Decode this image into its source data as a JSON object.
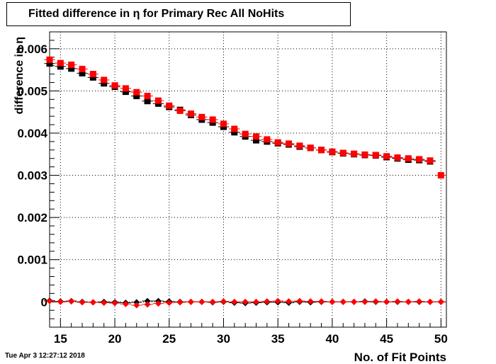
{
  "title": "Fitted difference in  η for Primary Rec All NoHits",
  "footer": {
    "timestamp": "Tue Apr  3 12:27:12 2018"
  },
  "chart_data": {
    "type": "scatter",
    "xlabel": "No. of Fit Points",
    "ylabel": "difference in η",
    "xlim": [
      14,
      50.5
    ],
    "ylim": [
      -0.0006,
      0.0064
    ],
    "grid": true,
    "x_ticks": [
      15,
      20,
      25,
      30,
      35,
      40,
      45,
      50
    ],
    "x_tick_labels": [
      "15",
      "20",
      "25",
      "30",
      "35",
      "40",
      "45",
      "50"
    ],
    "y_ticks": [
      0,
      0.001,
      0.002,
      0.003,
      0.004,
      0.005,
      0.006
    ],
    "y_tick_labels": [
      "0",
      "0.001",
      "0.002",
      "0.003",
      "0.004",
      "0.005",
      "0.006"
    ],
    "colors": {
      "black": "#000000",
      "red": "#ff0000"
    },
    "series": [
      {
        "color": "black",
        "marker": "square",
        "x": [
          14,
          15,
          16,
          17,
          18,
          19,
          20,
          21,
          22,
          23,
          24,
          25,
          26,
          27,
          28,
          29,
          30,
          31,
          32,
          33,
          34,
          35,
          36,
          37,
          38,
          39,
          40,
          41,
          42,
          43,
          44,
          45,
          46,
          47,
          48,
          49
        ],
        "y": [
          0.00565,
          0.00558,
          0.00553,
          0.00542,
          0.00532,
          0.00518,
          0.0051,
          0.00498,
          0.00488,
          0.00476,
          0.0047,
          0.00462,
          0.00455,
          0.00443,
          0.00432,
          0.00425,
          0.00415,
          0.00402,
          0.00392,
          0.00383,
          0.0038,
          0.00376,
          0.00373,
          0.00368,
          0.00365,
          0.0036,
          0.00355,
          0.00352,
          0.0035,
          0.00348,
          0.00347,
          0.00343,
          0.0034,
          0.00337,
          0.00336,
          0.00333
        ]
      },
      {
        "color": "red",
        "marker": "square",
        "x": [
          14,
          15,
          16,
          17,
          18,
          19,
          20,
          21,
          22,
          23,
          24,
          25,
          26,
          27,
          28,
          29,
          30,
          31,
          32,
          33,
          34,
          35,
          36,
          37,
          38,
          39,
          40,
          41,
          42,
          43,
          44,
          45,
          46,
          47,
          48,
          49,
          50
        ],
        "y": [
          0.00574,
          0.00566,
          0.00562,
          0.00552,
          0.0054,
          0.00526,
          0.00513,
          0.00506,
          0.00497,
          0.00488,
          0.00477,
          0.00465,
          0.00453,
          0.00446,
          0.00438,
          0.00432,
          0.00422,
          0.0041,
          0.00398,
          0.00392,
          0.00385,
          0.00378,
          0.00375,
          0.0037,
          0.00365,
          0.0036,
          0.00356,
          0.00353,
          0.00351,
          0.00349,
          0.00348,
          0.00345,
          0.00342,
          0.0034,
          0.00338,
          0.00335,
          0.003
        ]
      },
      {
        "color": "black",
        "marker": "diamond",
        "x": [
          14,
          15,
          16,
          17,
          18,
          19,
          20,
          21,
          22,
          23,
          24,
          25,
          26,
          27,
          28,
          29,
          30,
          31,
          32,
          33,
          34,
          35,
          36,
          37,
          38,
          39,
          40,
          41,
          42,
          43,
          44,
          45,
          46,
          47,
          48,
          49,
          50
        ],
        "y": [
          3e-05,
          1e-05,
          2e-05,
          0.0,
          -1e-05,
          0.0,
          -1e-05,
          -2e-05,
          -1e-05,
          2e-05,
          2e-05,
          1e-05,
          0.0,
          0.0,
          0.0,
          -1e-05,
          0.0,
          -2e-05,
          -3e-05,
          -2e-05,
          -1e-05,
          -1e-05,
          -2e-05,
          0.0,
          -1e-05,
          0.0,
          0.0,
          0.0,
          0.0,
          1e-05,
          0.0,
          0.0,
          0.0,
          0.0,
          0.0,
          0.0,
          0.0
        ]
      },
      {
        "color": "red",
        "marker": "diamond",
        "x": [
          14,
          15,
          16,
          17,
          18,
          19,
          20,
          21,
          22,
          23,
          24,
          25,
          26,
          27,
          28,
          29,
          30,
          31,
          32,
          33,
          34,
          35,
          36,
          37,
          38,
          39,
          40,
          41,
          42,
          43,
          44,
          45,
          46,
          47,
          48,
          49,
          50
        ],
        "y": [
          2e-05,
          0.0,
          1e-05,
          -1e-05,
          -1e-05,
          -2e-05,
          -3e-05,
          -5e-05,
          -8e-05,
          -6e-05,
          -4e-05,
          -2e-05,
          -1e-05,
          0.0,
          0.0,
          0.0,
          1e-05,
          0.0,
          0.0,
          0.0,
          1e-05,
          2e-05,
          1e-05,
          2e-05,
          1e-05,
          1e-05,
          0.0,
          0.0,
          0.0,
          0.0,
          1e-05,
          0.0,
          1e-05,
          0.0,
          1e-05,
          0.0,
          0.0
        ]
      }
    ]
  }
}
